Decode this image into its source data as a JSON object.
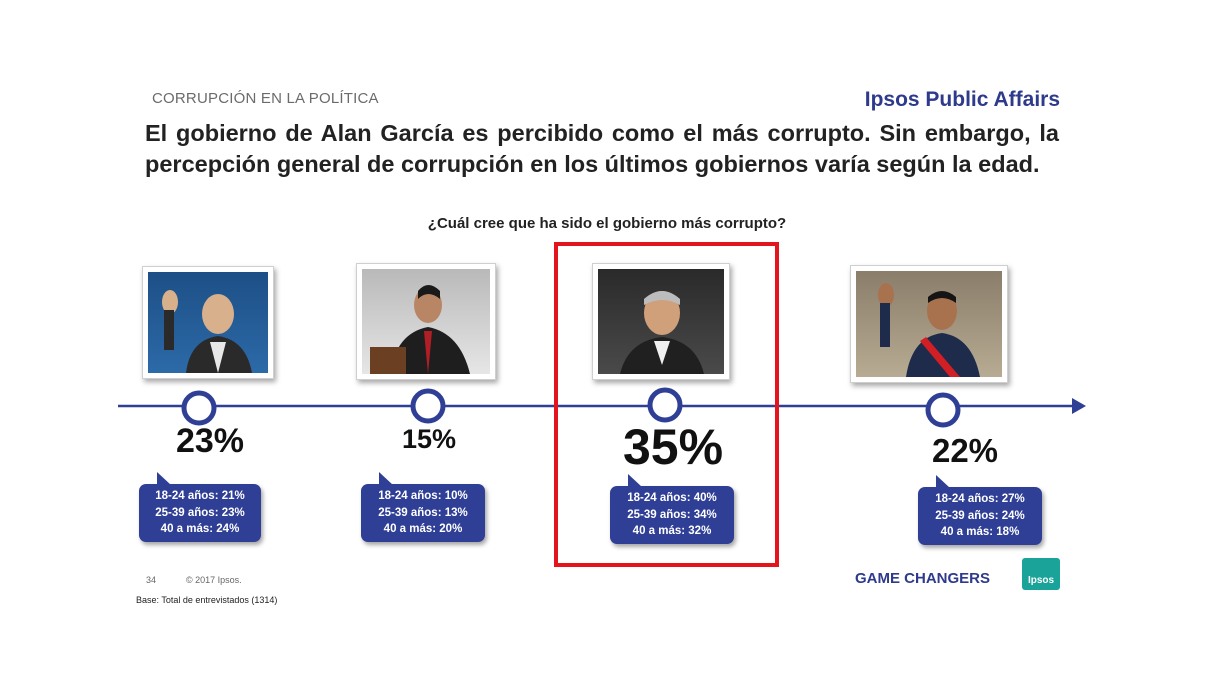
{
  "header": {
    "section": "CORRUPCIÓN EN LA POLÍTICA",
    "brand": "Ipsos Public Affairs",
    "headline": "El gobierno de Alan García es percibido como el más corrupto. Sin embargo, la percepción general de corrupción en los últimos gobiernos varía según la edad."
  },
  "chart_data": {
    "type": "timeline",
    "title": "¿Cuál cree que ha sido el gobierno más corrupto?",
    "highlighted_index": 2,
    "colors": {
      "axis": "#2f3f95",
      "callout": "#2f3f95",
      "highlight": "#e3141b"
    },
    "items": [
      {
        "value": 23,
        "label": "23%",
        "breakdown": [
          "18-24 años: 21%",
          "25-39 años: 23%",
          "40 a más: 24%"
        ]
      },
      {
        "value": 15,
        "label": "15%",
        "breakdown": [
          "18-24 años: 10%",
          "25-39 años: 13%",
          "40 a más: 20%"
        ]
      },
      {
        "value": 35,
        "label": "35%",
        "breakdown": [
          "18-24 años: 40%",
          "25-39 años: 34%",
          "40 a más: 32%"
        ]
      },
      {
        "value": 22,
        "label": "22%",
        "breakdown": [
          "18-24 años: 27%",
          "25-39 años: 24%",
          "40 a más: 18%"
        ]
      }
    ]
  },
  "footer": {
    "page": "34",
    "copyright": "© 2017 Ipsos.",
    "base": "Base: Total de entrevistados (1314)",
    "tagline": "GAME CHANGERS",
    "logo_text": "Ipsos"
  }
}
